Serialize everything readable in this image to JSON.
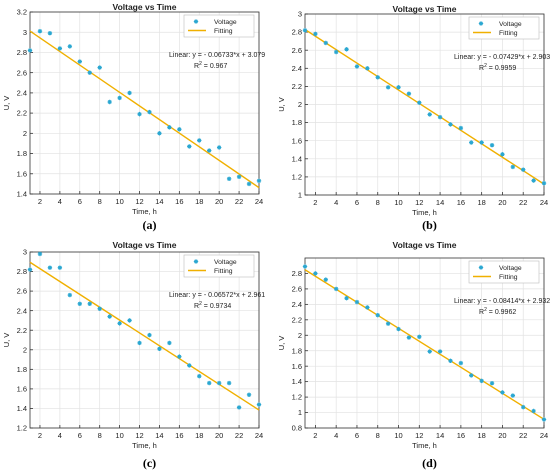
{
  "chart_data": [
    {
      "type": "scatter",
      "panel_label": "(a)",
      "title": "Voltage vs Time",
      "xlabel": "Time, h",
      "ylabel": "U, V",
      "xlim": [
        1,
        24
      ],
      "ylim": [
        1.4,
        3.2
      ],
      "xticks": [
        2,
        4,
        6,
        8,
        10,
        12,
        14,
        16,
        18,
        20,
        22,
        24
      ],
      "yticks": [
        1.4,
        1.6,
        1.8,
        2,
        2.2,
        2.4,
        2.6,
        2.8,
        3,
        3.2
      ],
      "grid": true,
      "legend_position": "top-right",
      "legend": [
        "Voltage",
        "Fitting"
      ],
      "annotation": {
        "line1": "Linear:  y = - 0.06733*x + 3.079",
        "r2_prefix": "R",
        "r2_sup": "2",
        "r2_value": " = 0.967"
      },
      "series": [
        {
          "name": "Voltage",
          "style": "markers",
          "x": [
            1,
            2,
            3,
            4,
            5,
            6,
            7,
            8,
            9,
            10,
            11,
            12,
            13,
            14,
            15,
            16,
            17,
            18,
            19,
            20,
            21,
            22,
            23,
            24
          ],
          "y": [
            2.82,
            3.01,
            2.99,
            2.84,
            2.86,
            2.71,
            2.6,
            2.65,
            2.31,
            2.35,
            2.4,
            2.19,
            2.21,
            2.0,
            2.06,
            2.04,
            1.87,
            1.93,
            1.83,
            1.86,
            1.55,
            1.57,
            1.5,
            1.53
          ]
        },
        {
          "name": "Fitting",
          "style": "line",
          "slope": -0.06733,
          "intercept": 3.079
        }
      ]
    },
    {
      "type": "scatter",
      "panel_label": "(b)",
      "title": "Voltage vs Time",
      "xlabel": "Time, h",
      "ylabel": "U, V",
      "xlim": [
        1,
        24
      ],
      "ylim": [
        1,
        3
      ],
      "xticks": [
        2,
        4,
        6,
        8,
        10,
        12,
        14,
        16,
        18,
        20,
        22,
        24
      ],
      "yticks": [
        1,
        1.2,
        1.4,
        1.6,
        1.8,
        2,
        2.2,
        2.4,
        2.6,
        2.8,
        3
      ],
      "grid": true,
      "legend_position": "top-right",
      "legend": [
        "Voltage",
        "Fitting"
      ],
      "annotation": {
        "line1": "Linear:  y = - 0.07429*x + 2.903",
        "r2_prefix": "R",
        "r2_sup": "2",
        "r2_value": " = 0.9959"
      },
      "series": [
        {
          "name": "Voltage",
          "style": "markers",
          "x": [
            1,
            2,
            3,
            4,
            5,
            6,
            7,
            8,
            9,
            10,
            11,
            12,
            13,
            14,
            15,
            16,
            17,
            18,
            19,
            20,
            21,
            22,
            23,
            24
          ],
          "y": [
            2.82,
            2.78,
            2.68,
            2.58,
            2.61,
            2.42,
            2.4,
            2.3,
            2.19,
            2.19,
            2.12,
            2.02,
            1.89,
            1.86,
            1.78,
            1.74,
            1.58,
            1.58,
            1.55,
            1.45,
            1.31,
            1.28,
            1.16,
            1.13
          ]
        },
        {
          "name": "Fitting",
          "style": "line",
          "slope": -0.07429,
          "intercept": 2.903
        }
      ]
    },
    {
      "type": "scatter",
      "panel_label": "(c)",
      "title": "Voltage vs Time",
      "xlabel": "Time, h",
      "ylabel": "U, V",
      "xlim": [
        1,
        24
      ],
      "ylim": [
        1.2,
        3
      ],
      "xticks": [
        2,
        4,
        6,
        8,
        10,
        12,
        14,
        16,
        18,
        20,
        22,
        24
      ],
      "yticks": [
        1.2,
        1.4,
        1.6,
        1.8,
        2,
        2.2,
        2.4,
        2.6,
        2.8,
        3
      ],
      "grid": true,
      "legend_position": "top-right",
      "legend": [
        "Voltage",
        "Fitting"
      ],
      "annotation": {
        "line1": "Linear:  y = - 0.06572*x + 2.961",
        "r2_prefix": "R",
        "r2_sup": "2",
        "r2_value": " = 0.9734"
      },
      "series": [
        {
          "name": "Voltage",
          "style": "markers",
          "x": [
            1,
            2,
            3,
            4,
            5,
            6,
            7,
            8,
            9,
            10,
            11,
            12,
            13,
            14,
            15,
            16,
            17,
            18,
            19,
            20,
            21,
            22,
            23,
            24
          ],
          "y": [
            2.82,
            2.98,
            2.84,
            2.84,
            2.56,
            2.47,
            2.47,
            2.42,
            2.34,
            2.27,
            2.3,
            2.07,
            2.15,
            2.01,
            2.07,
            1.93,
            1.84,
            1.73,
            1.66,
            1.66,
            1.66,
            1.41,
            1.54,
            1.44
          ]
        },
        {
          "name": "Fitting",
          "style": "line",
          "slope": -0.06572,
          "intercept": 2.961
        }
      ]
    },
    {
      "type": "scatter",
      "panel_label": "(d)",
      "title": "Voltage vs Time",
      "xlabel": "Time, h",
      "ylabel": "U, V",
      "xlim": [
        1,
        24
      ],
      "ylim": [
        0.8,
        3
      ],
      "xticks": [
        2,
        4,
        6,
        8,
        10,
        12,
        14,
        16,
        18,
        20,
        22,
        24
      ],
      "yticks": [
        0.8,
        1,
        1.2,
        1.4,
        1.6,
        1.8,
        2,
        2.2,
        2.4,
        2.6,
        2.8
      ],
      "grid": true,
      "legend_position": "top-right",
      "legend": [
        "Voltage",
        "Fitting"
      ],
      "annotation": {
        "line1": "Linear:  y = - 0.08414*x + 2.932",
        "r2_prefix": "R",
        "r2_sup": "2",
        "r2_value": " = 0.9962"
      },
      "series": [
        {
          "name": "Voltage",
          "style": "markers",
          "x": [
            1,
            2,
            3,
            4,
            5,
            6,
            7,
            8,
            9,
            10,
            11,
            12,
            13,
            14,
            15,
            16,
            17,
            18,
            19,
            20,
            21,
            22,
            23,
            24
          ],
          "y": [
            2.89,
            2.8,
            2.72,
            2.6,
            2.48,
            2.43,
            2.36,
            2.26,
            2.15,
            2.08,
            1.97,
            1.98,
            1.79,
            1.79,
            1.67,
            1.64,
            1.48,
            1.41,
            1.38,
            1.26,
            1.22,
            1.07,
            1.02,
            0.91
          ]
        },
        {
          "name": "Fitting",
          "style": "line",
          "slope": -0.08414,
          "intercept": 2.932
        }
      ]
    }
  ],
  "colors": {
    "marker": "#2aa7d1",
    "fit": "#f0b000",
    "grid": "#e2e2e2",
    "axis": "#333333",
    "text": "#222222"
  }
}
